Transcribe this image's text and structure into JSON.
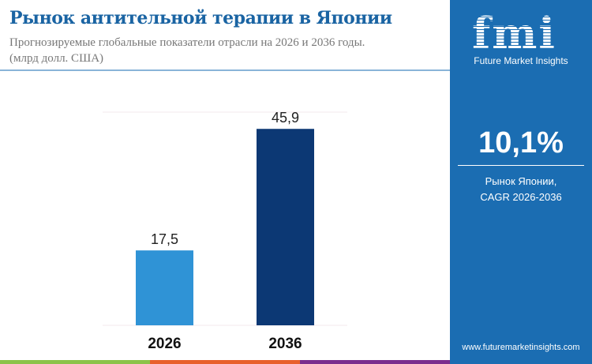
{
  "title": "Рынок антительной терапии в Японии",
  "subtitle": "Прогнозируемые глобальные показатели отрасли на 2026 и 2036 годы.",
  "unit": "(млрд долл. США)",
  "panel": {
    "brand": "fmi",
    "brand_full": "Future Market Insights",
    "cagr_value": "10,1%",
    "cagr_label_1": "Рынок Японии,",
    "cagr_label_2": "CAGR 2026-2036",
    "url": "www.futuremarketinsights.com"
  },
  "colors": {
    "bar_2026": "#2f93d6",
    "bar_2036": "#0c3874",
    "panel": "#1b6db2",
    "title": "#1a64a3",
    "strip": [
      "#8bc34a",
      "#e8602c",
      "#7b2d8e"
    ]
  },
  "chart_data": {
    "type": "bar",
    "categories": [
      "2026",
      "2036"
    ],
    "values": [
      17.5,
      45.9
    ],
    "data_labels": [
      "17,5",
      "45,9"
    ],
    "ylim": [
      0,
      50
    ],
    "grid": false
  }
}
